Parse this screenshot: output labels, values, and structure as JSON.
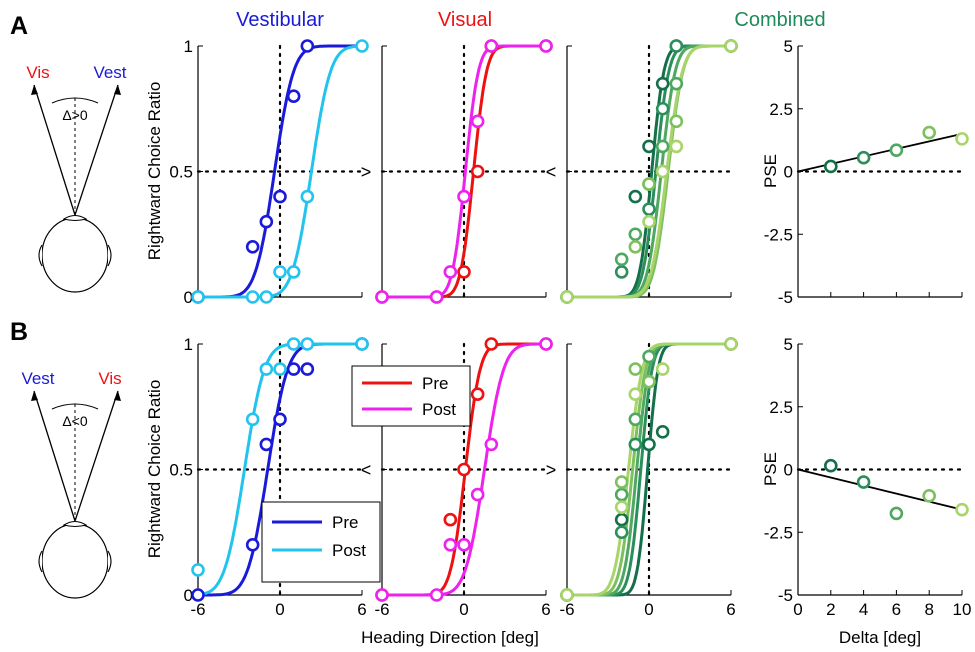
{
  "panels": [
    {
      "letter": "A",
      "diagram": {
        "left_label": "Vis",
        "right_label": "Vest",
        "delta_label": "Δ>0",
        "left_color": "#ee1111",
        "right_color": "#1a1adb"
      }
    },
    {
      "letter": "B",
      "diagram": {
        "left_label": "Vest",
        "right_label": "Vis",
        "delta_label": "Δ<0",
        "left_color": "#1a1adb",
        "right_color": "#ee1111"
      }
    }
  ],
  "column_titles": [
    {
      "text": "Vestibular",
      "color": "#1a1adb"
    },
    {
      "text": "Visual",
      "color": "#ee1111"
    },
    {
      "text": "Combined",
      "color": "#1e8a5a"
    }
  ],
  "y_axis_label": "Rightward Choice Ratio",
  "x_axis_label": "Heading Direction [deg]",
  "pse_y_label": "PSE",
  "pse_x_label": "Delta [deg]",
  "psych_x_ticks": [
    "-6",
    "0",
    "6"
  ],
  "psych_y_ticks": [
    "0",
    "0.5",
    "1"
  ],
  "pse_x_ticks": [
    "0",
    "2",
    "4",
    "6",
    "8",
    "10"
  ],
  "pse_y_ticks": [
    "-5",
    "-2.5",
    "0",
    "2.5",
    "5"
  ],
  "shift_marks": {
    "A_vestibular": ">",
    "A_visual": "<",
    "B_vestibular": "<",
    "B_visual": ">"
  },
  "legends": {
    "vestibular": [
      {
        "label": "Pre",
        "color": "#1a1adb"
      },
      {
        "label": "Post",
        "color": "#22c4ee"
      }
    ],
    "visual": [
      {
        "label": "Pre",
        "color": "#ee1111"
      },
      {
        "label": "Post",
        "color": "#ee22ee"
      }
    ]
  },
  "chart_data": [
    {
      "type": "line",
      "panel": "A",
      "title": "Vestibular",
      "xlim": [
        -6,
        6
      ],
      "ylim": [
        0,
        1
      ],
      "series": [
        {
          "name": "Pre",
          "color": "#1a1adb",
          "mu": -0.4,
          "sigma": 1.1,
          "points": [
            [
              -6,
              0
            ],
            [
              -2,
              0.2
            ],
            [
              -1,
              0.3
            ],
            [
              0,
              0.4
            ],
            [
              1,
              0.8
            ],
            [
              2,
              1
            ]
          ]
        },
        {
          "name": "Post",
          "color": "#22c4ee",
          "mu": 2.3,
          "sigma": 1.1,
          "points": [
            [
              -6,
              0
            ],
            [
              -2,
              0
            ],
            [
              -1,
              0
            ],
            [
              0,
              0.1
            ],
            [
              1,
              0.1
            ],
            [
              2,
              0.4
            ],
            [
              6,
              1
            ]
          ]
        }
      ]
    },
    {
      "type": "line",
      "panel": "A",
      "title": "Visual",
      "xlim": [
        -6,
        6
      ],
      "ylim": [
        0,
        1
      ],
      "series": [
        {
          "name": "Pre",
          "color": "#ee1111",
          "mu": 0.7,
          "sigma": 0.75,
          "points": [
            [
              -6,
              0
            ],
            [
              -2,
              0
            ],
            [
              0,
              0.1
            ],
            [
              1,
              0.5
            ],
            [
              2,
              1
            ],
            [
              6,
              1
            ]
          ]
        },
        {
          "name": "Post",
          "color": "#ee22ee",
          "mu": 0.1,
          "sigma": 0.75,
          "points": [
            [
              -6,
              0
            ],
            [
              -2,
              0
            ],
            [
              -1,
              0.1
            ],
            [
              0,
              0.4
            ],
            [
              1,
              0.7
            ],
            [
              2,
              1
            ],
            [
              6,
              1
            ]
          ]
        }
      ]
    },
    {
      "type": "line",
      "panel": "A",
      "title": "Combined",
      "xlim": [
        -6,
        6
      ],
      "ylim": [
        0,
        1
      ],
      "series": [
        {
          "color": "#14704a",
          "mu": 0.2,
          "sigma": 0.7,
          "points": [
            [
              -6,
              0
            ],
            [
              -1,
              0.4
            ],
            [
              0,
              0.6
            ],
            [
              1,
              0.85
            ],
            [
              2,
              1
            ],
            [
              6,
              1
            ]
          ]
        },
        {
          "color": "#2b8f5c",
          "mu": 0.5,
          "sigma": 0.75,
          "points": [
            [
              -6,
              0
            ],
            [
              -2,
              0.1
            ],
            [
              0,
              0.35
            ],
            [
              1,
              0.75
            ],
            [
              2,
              1
            ],
            [
              6,
              1
            ]
          ]
        },
        {
          "color": "#4ea860",
          "mu": 0.9,
          "sigma": 0.8,
          "points": [
            [
              -6,
              0
            ],
            [
              -2,
              0.15
            ],
            [
              -1,
              0.25
            ],
            [
              0,
              0.45
            ],
            [
              1,
              0.6
            ],
            [
              2,
              0.85
            ],
            [
              6,
              1
            ]
          ]
        },
        {
          "color": "#7dc05e",
          "mu": 1.4,
          "sigma": 0.85,
          "points": [
            [
              -6,
              0
            ],
            [
              -1,
              0.2
            ],
            [
              0,
              0.45
            ],
            [
              1,
              0.5
            ],
            [
              2,
              0.7
            ],
            [
              6,
              1
            ]
          ]
        },
        {
          "color": "#a8d46a",
          "mu": 1.3,
          "sigma": 0.9,
          "points": [
            [
              -6,
              0
            ],
            [
              0,
              0.3
            ],
            [
              1,
              0.5
            ],
            [
              2,
              0.6
            ],
            [
              6,
              1
            ]
          ]
        }
      ]
    },
    {
      "type": "scatter",
      "panel": "A",
      "xlabel": "Delta [deg]",
      "ylabel": "PSE",
      "xlim": [
        0,
        10
      ],
      "ylim": [
        -5,
        5
      ],
      "points": [
        [
          2,
          0.2
        ],
        [
          4,
          0.55
        ],
        [
          6,
          0.85
        ],
        [
          8,
          1.55
        ],
        [
          10,
          1.3
        ]
      ],
      "point_colors": [
        "#14704a",
        "#2b8f5c",
        "#4ea860",
        "#7dc05e",
        "#a8d46a"
      ],
      "fit": {
        "slope": 0.15,
        "intercept": 0
      }
    },
    {
      "type": "line",
      "panel": "B",
      "title": "Vestibular",
      "xlim": [
        -6,
        6
      ],
      "ylim": [
        0,
        1
      ],
      "series": [
        {
          "name": "Pre",
          "color": "#1a1adb",
          "mu": -0.9,
          "sigma": 1.15,
          "points": [
            [
              -6,
              0
            ],
            [
              -2,
              0.2
            ],
            [
              -1,
              0.6
            ],
            [
              0,
              0.7
            ],
            [
              1,
              0.9
            ],
            [
              2,
              0.9
            ],
            [
              6,
              1
            ]
          ]
        },
        {
          "name": "Post",
          "color": "#22c4ee",
          "mu": -2.6,
          "sigma": 1.15,
          "points": [
            [
              -6,
              0.1
            ],
            [
              -2,
              0.7
            ],
            [
              -1,
              0.9
            ],
            [
              0,
              0.9
            ],
            [
              1,
              1
            ],
            [
              2,
              1
            ],
            [
              6,
              1
            ]
          ]
        }
      ]
    },
    {
      "type": "line",
      "panel": "B",
      "title": "Visual",
      "xlim": [
        -6,
        6
      ],
      "ylim": [
        0,
        1
      ],
      "series": [
        {
          "name": "Pre",
          "color": "#ee1111",
          "mu": 0.1,
          "sigma": 0.85,
          "points": [
            [
              -6,
              0
            ],
            [
              -1,
              0.3
            ],
            [
              0,
              0.5
            ],
            [
              1,
              0.8
            ],
            [
              2,
              1
            ],
            [
              6,
              1
            ]
          ]
        },
        {
          "name": "Post",
          "color": "#ee22ee",
          "mu": 1.5,
          "sigma": 1.1,
          "points": [
            [
              -6,
              0
            ],
            [
              -2,
              0
            ],
            [
              -1,
              0.2
            ],
            [
              0,
              0.2
            ],
            [
              1,
              0.4
            ],
            [
              2,
              0.6
            ],
            [
              6,
              1
            ]
          ]
        }
      ]
    },
    {
      "type": "line",
      "panel": "B",
      "title": "Combined",
      "xlim": [
        -6,
        6
      ],
      "ylim": [
        0,
        1
      ],
      "series": [
        {
          "color": "#14704a",
          "mu": -0.1,
          "sigma": 0.6,
          "points": [
            [
              -6,
              0
            ],
            [
              -2,
              0.3
            ],
            [
              0,
              0.6
            ],
            [
              1,
              0.65
            ],
            [
              6,
              1
            ]
          ]
        },
        {
          "color": "#2b8f5c",
          "mu": -0.6,
          "sigma": 0.65,
          "points": [
            [
              -6,
              0
            ],
            [
              -2,
              0.25
            ],
            [
              -1,
              0.6
            ],
            [
              0,
              0.85
            ],
            [
              6,
              1
            ]
          ]
        },
        {
          "color": "#4ea860",
          "mu": -0.9,
          "sigma": 0.7,
          "points": [
            [
              -6,
              0
            ],
            [
              -2,
              0.4
            ],
            [
              -1,
              0.7
            ],
            [
              0,
              0.95
            ],
            [
              6,
              1
            ]
          ]
        },
        {
          "color": "#7dc05e",
          "mu": -1.2,
          "sigma": 0.75,
          "points": [
            [
              -6,
              0
            ],
            [
              -2,
              0.45
            ],
            [
              -1,
              0.9
            ],
            [
              0,
              0.85
            ],
            [
              6,
              1
            ]
          ]
        },
        {
          "color": "#a8d46a",
          "mu": -1.5,
          "sigma": 0.8,
          "points": [
            [
              -6,
              0
            ],
            [
              -2,
              0.35
            ],
            [
              -1,
              0.8
            ],
            [
              1,
              0.9
            ],
            [
              6,
              1
            ]
          ]
        }
      ]
    },
    {
      "type": "scatter",
      "panel": "B",
      "xlabel": "Delta [deg]",
      "ylabel": "PSE",
      "xlim": [
        0,
        10
      ],
      "ylim": [
        -5,
        5
      ],
      "points": [
        [
          2,
          0.15
        ],
        [
          4,
          -0.5
        ],
        [
          6,
          -1.75
        ],
        [
          8,
          -1.05
        ],
        [
          10,
          -1.6
        ]
      ],
      "point_colors": [
        "#14704a",
        "#2b8f5c",
        "#4ea860",
        "#7dc05e",
        "#a8d46a"
      ],
      "fit": {
        "slope": -0.16,
        "intercept": 0
      }
    }
  ]
}
